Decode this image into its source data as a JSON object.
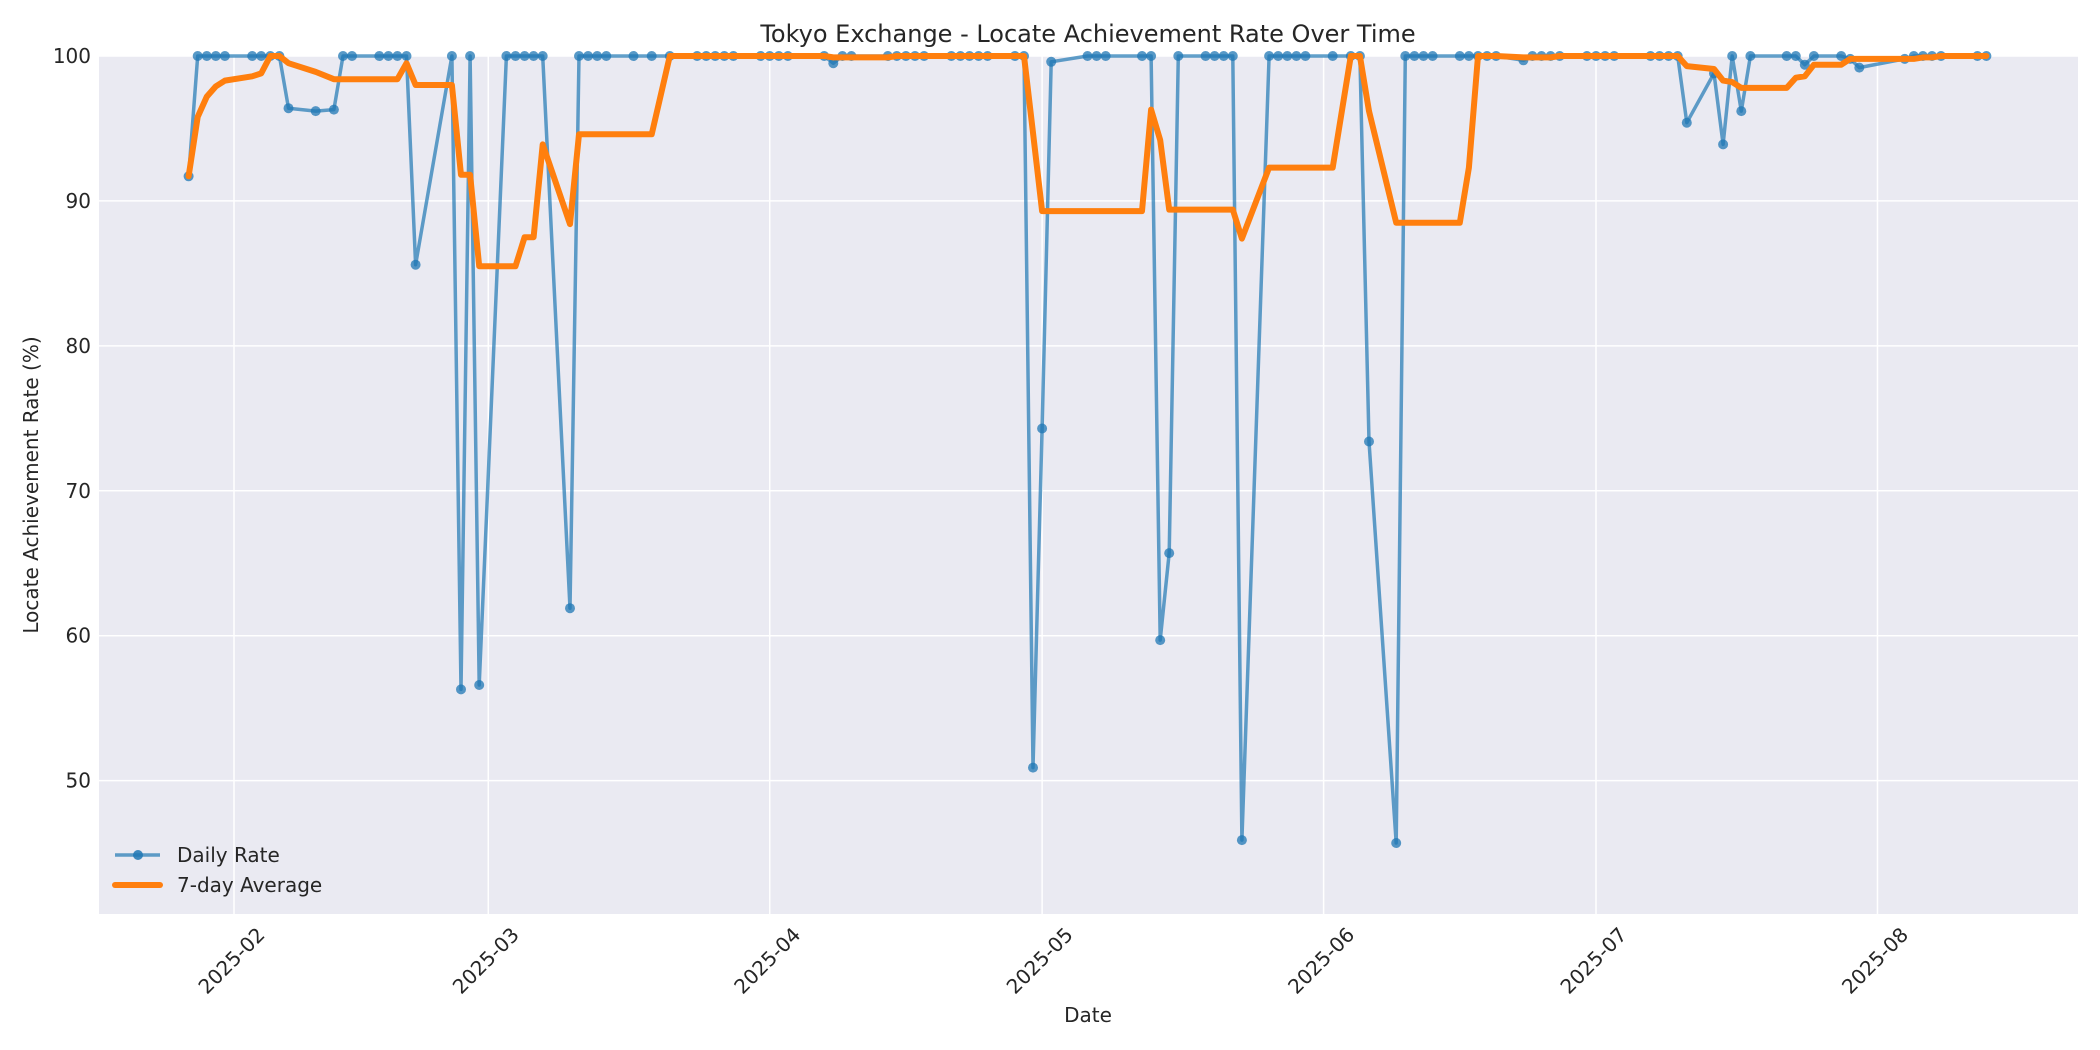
{
  "chart_data": {
    "type": "line",
    "title": "Tokyo Exchange - Locate Achievement Rate Over Time",
    "xlabel": "Date",
    "ylabel": "Locate Achievement Rate (%)",
    "ylim": [
      40.8,
      100
    ],
    "xlim": [
      "2025-01-17",
      "2025-08-23"
    ],
    "yticks": [
      50,
      60,
      70,
      80,
      90,
      100
    ],
    "xticks": [
      "2025-02",
      "2025-03",
      "2025-04",
      "2025-05",
      "2025-06",
      "2025-07",
      "2025-08"
    ],
    "xtick_dates": [
      "2025-02-01",
      "2025-03-01",
      "2025-04-01",
      "2025-05-01",
      "2025-06-01",
      "2025-07-01",
      "2025-08-01"
    ],
    "grid": true,
    "legend_position": "lower left",
    "series": [
      {
        "name": "Daily Rate",
        "color": "#1f77b4",
        "style": "line-with-markers",
        "points": [
          [
            "2025-01-27",
            91.7
          ],
          [
            "2025-01-28",
            100
          ],
          [
            "2025-01-29",
            100
          ],
          [
            "2025-01-30",
            100
          ],
          [
            "2025-01-31",
            100
          ],
          [
            "2025-02-03",
            100
          ],
          [
            "2025-02-04",
            100
          ],
          [
            "2025-02-05",
            100
          ],
          [
            "2025-02-06",
            100
          ],
          [
            "2025-02-07",
            96.4
          ],
          [
            "2025-02-10",
            96.2
          ],
          [
            "2025-02-12",
            96.3
          ],
          [
            "2025-02-13",
            100
          ],
          [
            "2025-02-14",
            100
          ],
          [
            "2025-02-17",
            100
          ],
          [
            "2025-02-18",
            100
          ],
          [
            "2025-02-19",
            100
          ],
          [
            "2025-02-20",
            100
          ],
          [
            "2025-02-21",
            85.6
          ],
          [
            "2025-02-25",
            100
          ],
          [
            "2025-02-26",
            56.3
          ],
          [
            "2025-02-27",
            100
          ],
          [
            "2025-02-28",
            56.6
          ],
          [
            "2025-03-03",
            100
          ],
          [
            "2025-03-04",
            100
          ],
          [
            "2025-03-05",
            100
          ],
          [
            "2025-03-06",
            100
          ],
          [
            "2025-03-07",
            100
          ],
          [
            "2025-03-10",
            61.9
          ],
          [
            "2025-03-11",
            100
          ],
          [
            "2025-03-12",
            100
          ],
          [
            "2025-03-13",
            100
          ],
          [
            "2025-03-14",
            100
          ],
          [
            "2025-03-17",
            100
          ],
          [
            "2025-03-19",
            100
          ],
          [
            "2025-03-21",
            100
          ],
          [
            "2025-03-24",
            100
          ],
          [
            "2025-03-25",
            100
          ],
          [
            "2025-03-26",
            100
          ],
          [
            "2025-03-27",
            100
          ],
          [
            "2025-03-28",
            100
          ],
          [
            "2025-03-31",
            100
          ],
          [
            "2025-04-01",
            100
          ],
          [
            "2025-04-02",
            100
          ],
          [
            "2025-04-03",
            100
          ],
          [
            "2025-04-07",
            100
          ],
          [
            "2025-04-08",
            99.5
          ],
          [
            "2025-04-09",
            100
          ],
          [
            "2025-04-10",
            100
          ],
          [
            "2025-04-14",
            100
          ],
          [
            "2025-04-15",
            100
          ],
          [
            "2025-04-16",
            100
          ],
          [
            "2025-04-17",
            100
          ],
          [
            "2025-04-18",
            100
          ],
          [
            "2025-04-21",
            100
          ],
          [
            "2025-04-22",
            100
          ],
          [
            "2025-04-23",
            100
          ],
          [
            "2025-04-24",
            100
          ],
          [
            "2025-04-25",
            100
          ],
          [
            "2025-04-28",
            100
          ],
          [
            "2025-04-29",
            100
          ],
          [
            "2025-04-30",
            50.9
          ],
          [
            "2025-05-01",
            74.3
          ],
          [
            "2025-05-02",
            99.6
          ],
          [
            "2025-05-06",
            100
          ],
          [
            "2025-05-07",
            100
          ],
          [
            "2025-05-08",
            100
          ],
          [
            "2025-05-12",
            100
          ],
          [
            "2025-05-13",
            100
          ],
          [
            "2025-05-14",
            59.7
          ],
          [
            "2025-05-15",
            65.7
          ],
          [
            "2025-05-16",
            100
          ],
          [
            "2025-05-19",
            100
          ],
          [
            "2025-05-20",
            100
          ],
          [
            "2025-05-21",
            100
          ],
          [
            "2025-05-22",
            100
          ],
          [
            "2025-05-23",
            45.9
          ],
          [
            "2025-05-26",
            100
          ],
          [
            "2025-05-27",
            100
          ],
          [
            "2025-05-28",
            100
          ],
          [
            "2025-05-29",
            100
          ],
          [
            "2025-05-30",
            100
          ],
          [
            "2025-06-02",
            100
          ],
          [
            "2025-06-04",
            100
          ],
          [
            "2025-06-05",
            100
          ],
          [
            "2025-06-06",
            73.4
          ],
          [
            "2025-06-09",
            45.7
          ],
          [
            "2025-06-10",
            100
          ],
          [
            "2025-06-11",
            100
          ],
          [
            "2025-06-12",
            100
          ],
          [
            "2025-06-13",
            100
          ],
          [
            "2025-06-16",
            100
          ],
          [
            "2025-06-17",
            100
          ],
          [
            "2025-06-18",
            100
          ],
          [
            "2025-06-19",
            100
          ],
          [
            "2025-06-20",
            100
          ],
          [
            "2025-06-23",
            99.7
          ],
          [
            "2025-06-24",
            100
          ],
          [
            "2025-06-25",
            100
          ],
          [
            "2025-06-26",
            100
          ],
          [
            "2025-06-27",
            100
          ],
          [
            "2025-06-30",
            100
          ],
          [
            "2025-07-01",
            100
          ],
          [
            "2025-07-02",
            100
          ],
          [
            "2025-07-03",
            100
          ],
          [
            "2025-07-07",
            100
          ],
          [
            "2025-07-08",
            100
          ],
          [
            "2025-07-09",
            100
          ],
          [
            "2025-07-10",
            100
          ],
          [
            "2025-07-11",
            95.4
          ],
          [
            "2025-07-14",
            98.8
          ],
          [
            "2025-07-15",
            93.9
          ],
          [
            "2025-07-16",
            100
          ],
          [
            "2025-07-17",
            96.2
          ],
          [
            "2025-07-18",
            100
          ],
          [
            "2025-07-22",
            100
          ],
          [
            "2025-07-23",
            100
          ],
          [
            "2025-07-24",
            99.4
          ],
          [
            "2025-07-25",
            100
          ],
          [
            "2025-07-28",
            100
          ],
          [
            "2025-07-29",
            99.8
          ],
          [
            "2025-07-30",
            99.2
          ],
          [
            "2025-08-04",
            99.8
          ],
          [
            "2025-08-05",
            100
          ],
          [
            "2025-08-06",
            100
          ],
          [
            "2025-08-07",
            100
          ],
          [
            "2025-08-08",
            100
          ],
          [
            "2025-08-12",
            100
          ],
          [
            "2025-08-13",
            100
          ]
        ]
      },
      {
        "name": "7-day Average",
        "color": "#ff7f0e",
        "style": "thick-line",
        "points": [
          [
            "2025-01-27",
            91.7
          ],
          [
            "2025-01-28",
            95.8
          ],
          [
            "2025-01-29",
            97.2
          ],
          [
            "2025-01-30",
            97.9
          ],
          [
            "2025-01-31",
            98.3
          ],
          [
            "2025-02-03",
            98.6
          ],
          [
            "2025-02-04",
            98.8
          ],
          [
            "2025-02-05",
            100
          ],
          [
            "2025-02-06",
            100
          ],
          [
            "2025-02-07",
            99.5
          ],
          [
            "2025-02-10",
            98.9
          ],
          [
            "2025-02-12",
            98.4
          ],
          [
            "2025-02-13",
            98.4
          ],
          [
            "2025-02-14",
            98.4
          ],
          [
            "2025-02-17",
            98.4
          ],
          [
            "2025-02-18",
            98.4
          ],
          [
            "2025-02-19",
            98.4
          ],
          [
            "2025-02-20",
            99.5
          ],
          [
            "2025-02-21",
            98.0
          ],
          [
            "2025-02-25",
            98.0
          ],
          [
            "2025-02-26",
            91.8
          ],
          [
            "2025-02-27",
            91.8
          ],
          [
            "2025-02-28",
            85.5
          ],
          [
            "2025-03-03",
            85.5
          ],
          [
            "2025-03-04",
            85.5
          ],
          [
            "2025-03-05",
            87.5
          ],
          [
            "2025-03-06",
            87.5
          ],
          [
            "2025-03-07",
            93.9
          ],
          [
            "2025-03-10",
            88.4
          ],
          [
            "2025-03-11",
            94.6
          ],
          [
            "2025-03-12",
            94.6
          ],
          [
            "2025-03-13",
            94.6
          ],
          [
            "2025-03-14",
            94.6
          ],
          [
            "2025-03-17",
            94.6
          ],
          [
            "2025-03-19",
            94.6
          ],
          [
            "2025-03-21",
            100
          ],
          [
            "2025-03-24",
            100
          ],
          [
            "2025-03-25",
            100
          ],
          [
            "2025-03-26",
            100
          ],
          [
            "2025-03-27",
            100
          ],
          [
            "2025-03-28",
            100
          ],
          [
            "2025-03-31",
            100
          ],
          [
            "2025-04-01",
            100
          ],
          [
            "2025-04-02",
            100
          ],
          [
            "2025-04-03",
            100
          ],
          [
            "2025-04-07",
            100
          ],
          [
            "2025-04-08",
            99.9
          ],
          [
            "2025-04-09",
            99.9
          ],
          [
            "2025-04-10",
            99.9
          ],
          [
            "2025-04-14",
            99.9
          ],
          [
            "2025-04-15",
            100
          ],
          [
            "2025-04-16",
            100
          ],
          [
            "2025-04-17",
            100
          ],
          [
            "2025-04-18",
            100
          ],
          [
            "2025-04-21",
            100
          ],
          [
            "2025-04-22",
            100
          ],
          [
            "2025-04-23",
            100
          ],
          [
            "2025-04-24",
            100
          ],
          [
            "2025-04-25",
            100
          ],
          [
            "2025-04-28",
            100
          ],
          [
            "2025-04-29",
            100
          ],
          [
            "2025-04-30",
            94.7
          ],
          [
            "2025-05-01",
            89.3
          ],
          [
            "2025-05-02",
            89.3
          ],
          [
            "2025-05-06",
            89.3
          ],
          [
            "2025-05-07",
            89.3
          ],
          [
            "2025-05-08",
            89.3
          ],
          [
            "2025-05-12",
            89.3
          ],
          [
            "2025-05-13",
            96.3
          ],
          [
            "2025-05-14",
            94.2
          ],
          [
            "2025-05-15",
            89.4
          ],
          [
            "2025-05-16",
            89.4
          ],
          [
            "2025-05-19",
            89.4
          ],
          [
            "2025-05-20",
            89.4
          ],
          [
            "2025-05-21",
            89.4
          ],
          [
            "2025-05-22",
            89.4
          ],
          [
            "2025-05-23",
            87.4
          ],
          [
            "2025-05-26",
            92.3
          ],
          [
            "2025-05-27",
            92.3
          ],
          [
            "2025-05-28",
            92.3
          ],
          [
            "2025-05-29",
            92.3
          ],
          [
            "2025-05-30",
            92.3
          ],
          [
            "2025-06-02",
            92.3
          ],
          [
            "2025-06-04",
            100
          ],
          [
            "2025-06-05",
            100
          ],
          [
            "2025-06-06",
            96.2
          ],
          [
            "2025-06-09",
            88.5
          ],
          [
            "2025-06-10",
            88.5
          ],
          [
            "2025-06-11",
            88.5
          ],
          [
            "2025-06-12",
            88.5
          ],
          [
            "2025-06-13",
            88.5
          ],
          [
            "2025-06-16",
            88.5
          ],
          [
            "2025-06-17",
            92.3
          ],
          [
            "2025-06-18",
            100
          ],
          [
            "2025-06-19",
            100
          ],
          [
            "2025-06-20",
            100
          ],
          [
            "2025-06-23",
            99.9
          ],
          [
            "2025-06-24",
            99.9
          ],
          [
            "2025-06-25",
            99.9
          ],
          [
            "2025-06-26",
            99.9
          ],
          [
            "2025-06-27",
            100
          ],
          [
            "2025-06-30",
            100
          ],
          [
            "2025-07-01",
            100
          ],
          [
            "2025-07-02",
            100
          ],
          [
            "2025-07-03",
            100
          ],
          [
            "2025-07-07",
            100
          ],
          [
            "2025-07-08",
            100
          ],
          [
            "2025-07-09",
            100
          ],
          [
            "2025-07-10",
            100
          ],
          [
            "2025-07-11",
            99.3
          ],
          [
            "2025-07-14",
            99.1
          ],
          [
            "2025-07-15",
            98.3
          ],
          [
            "2025-07-16",
            98.2
          ],
          [
            "2025-07-17",
            97.8
          ],
          [
            "2025-07-18",
            97.8
          ],
          [
            "2025-07-22",
            97.8
          ],
          [
            "2025-07-23",
            98.5
          ],
          [
            "2025-07-24",
            98.6
          ],
          [
            "2025-07-25",
            99.4
          ],
          [
            "2025-07-28",
            99.4
          ],
          [
            "2025-07-29",
            99.8
          ],
          [
            "2025-07-30",
            99.8
          ],
          [
            "2025-08-04",
            99.8
          ],
          [
            "2025-08-05",
            99.8
          ],
          [
            "2025-08-06",
            99.9
          ],
          [
            "2025-08-07",
            99.9
          ],
          [
            "2025-08-08",
            100
          ],
          [
            "2025-08-12",
            100
          ],
          [
            "2025-08-13",
            100
          ]
        ]
      }
    ]
  },
  "legend": {
    "items": [
      {
        "label": "Daily Rate",
        "color": "#1f77b4"
      },
      {
        "label": "7-day Average",
        "color": "#ff7f0e"
      }
    ]
  },
  "style": {
    "plot_bg": "#eaeaf2",
    "grid_color": "#ffffff",
    "daily_color": "#1f77b4",
    "avg_color": "#ff7f0e"
  }
}
